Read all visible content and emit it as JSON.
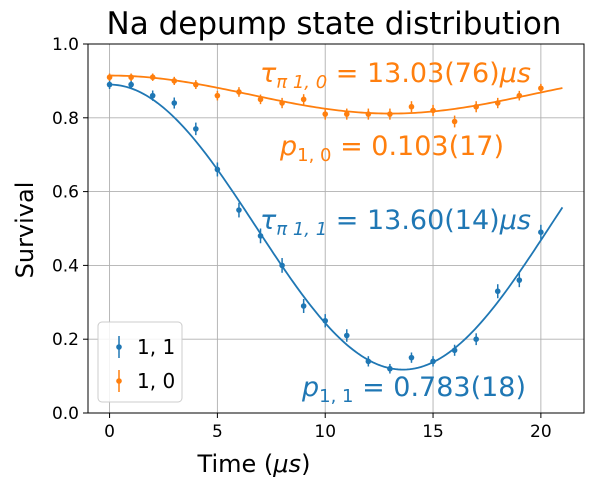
{
  "chart_data": {
    "type": "scatter",
    "title": "Na depump state distribution",
    "xlabel": "Time (μs)",
    "ylabel": "Survival",
    "xlim": [
      -1,
      22
    ],
    "ylim": [
      0.0,
      1.0
    ],
    "xticks": [
      0,
      5,
      10,
      15,
      20
    ],
    "yticks": [
      0.0,
      0.2,
      0.4,
      0.6,
      0.8,
      1.0
    ],
    "xtick_labels": [
      "0",
      "5",
      "10",
      "15",
      "20"
    ],
    "ytick_labels": [
      "0.0",
      "0.2",
      "0.4",
      "0.6",
      "0.8",
      "1.0"
    ],
    "grid": true,
    "legend_position": "lower-left",
    "series": [
      {
        "name": "1, 1",
        "color": "#1f77b4",
        "x": [
          0,
          1,
          2,
          3,
          4,
          5,
          6,
          7,
          8,
          9,
          10,
          11,
          12,
          13,
          14,
          15,
          16,
          17,
          18,
          19,
          20
        ],
        "y": [
          0.89,
          0.89,
          0.86,
          0.84,
          0.77,
          0.66,
          0.55,
          0.48,
          0.4,
          0.29,
          0.25,
          0.21,
          0.14,
          0.12,
          0.15,
          0.14,
          0.17,
          0.2,
          0.33,
          0.36,
          0.49
        ],
        "yerr": [
          0.012,
          0.012,
          0.014,
          0.015,
          0.017,
          0.019,
          0.02,
          0.02,
          0.02,
          0.019,
          0.018,
          0.017,
          0.014,
          0.013,
          0.014,
          0.014,
          0.015,
          0.016,
          0.019,
          0.019,
          0.02
        ],
        "fit": {
          "offset": 0.5038,
          "amplitude": 0.3862,
          "period": 27.2,
          "x_range": [
            0,
            21
          ]
        },
        "annotations": [
          "τ π 1 , 1 = 13.60(14)μs",
          "p 1 , 1 = 0.783(18)"
        ]
      },
      {
        "name": "1, 0",
        "color": "#ff7f0e",
        "x": [
          0,
          1,
          2,
          3,
          4,
          5,
          6,
          7,
          8,
          9,
          10,
          11,
          12,
          13,
          14,
          15,
          16,
          17,
          18,
          19,
          20
        ],
        "y": [
          0.91,
          0.91,
          0.91,
          0.9,
          0.89,
          0.86,
          0.87,
          0.85,
          0.84,
          0.85,
          0.81,
          0.81,
          0.81,
          0.81,
          0.83,
          0.82,
          0.79,
          0.83,
          0.84,
          0.86,
          0.88
        ],
        "yerr": [
          0.01,
          0.01,
          0.01,
          0.011,
          0.012,
          0.013,
          0.013,
          0.013,
          0.014,
          0.014,
          0.015,
          0.015,
          0.015,
          0.015,
          0.015,
          0.015,
          0.016,
          0.015,
          0.014,
          0.013,
          0.012
        ],
        "fit": {
          "offset": 0.863,
          "amplitude": 0.0515,
          "period": 26.06,
          "x_range": [
            0,
            21
          ]
        },
        "annotations": [
          "τ π 1 , 0 = 13.03(76)μs",
          "p 1 , 0 = 0.103(17)"
        ]
      }
    ]
  },
  "texts": {
    "title": "Na depump state distribution",
    "ylabel": "Survival",
    "xlabel_main": "Time (",
    "xlabel_unit": "μs",
    "xlabel_close": ")",
    "tau10_sym": "τ",
    "tau10_sub": "π 1, 0",
    "tau10_val": " = 13.03(76)",
    "tau10_unit": "μs",
    "p10_sym": "p",
    "p10_sub": "1, 0",
    "p10_val": " = 0.103(17)",
    "tau11_sym": "τ",
    "tau11_sub": "π 1, 1",
    "tau11_val": " = 13.60(14)",
    "tau11_unit": "μs",
    "p11_sym": "p",
    "p11_sub": "1, 1",
    "p11_val": " = 0.783(18)",
    "legend_1": "1, 1",
    "legend_2": "1, 0"
  },
  "colors": {
    "series_blue": "#1f77b4",
    "series_orange": "#ff7f0e",
    "grid": "#b0b0b0"
  }
}
